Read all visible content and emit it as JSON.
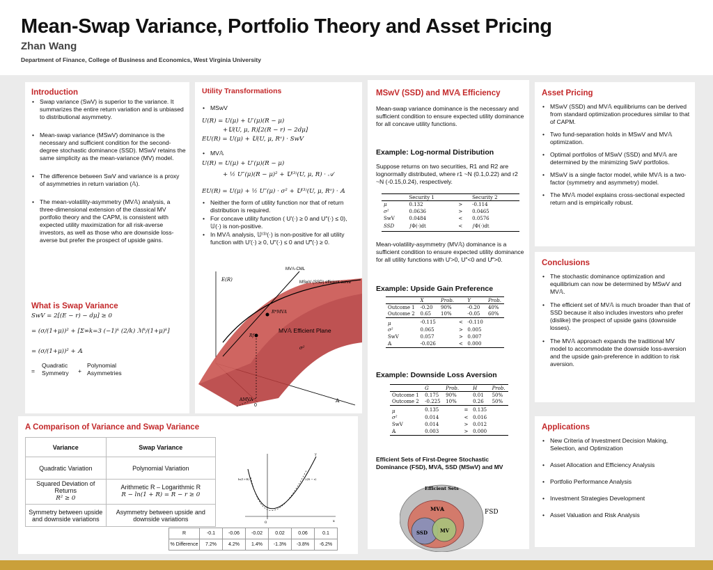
{
  "header": {
    "title": "Mean-Swap Variance, Portfolio Theory and Asset Pricing",
    "author": "Zhan Wang",
    "department": "Department of Finance, College of Business and Economics, West Virginia University"
  },
  "colors": {
    "accent_red": "#c3282a",
    "footer_gold": "#caa03a",
    "surface_red": "#b53a3a"
  },
  "introduction": {
    "title": "Introduction",
    "bullets": [
      "Swap variance (SwV) is superior to the variance.  It summarizes the entire return variation and is unbiased to distributional asymmetry.",
      "Mean-swap variance (MSwV) dominance is the necessary and sufficient condition for the second-degree stochastic dominance (SSD). MSwV retains the same simplicity as the mean-variance (MV) model.",
      "The difference between SwV and variance is a proxy of asymmetries in return variation (𝔸).",
      "The mean-volatility-asymmetry (MV𝔸) analysis, a three-dimensional extension of the classical MV portfolio theory and the CAPM, is consistent with expected utility maximization for all risk-averse investors, as well as those who are downside loss-averse but prefer the prospect of upside gains."
    ]
  },
  "swap_variance": {
    "title": "What is Swap Variance",
    "eq1": "SwV = 2[(E − r) − dμ] ≥ 0",
    "eq2": "= (σ/(1+μ))² + [Σ∞k=3 (−1)ᵏ (2/k) ℳᵏ/(1+μ)ᵏ]",
    "eq3": "= (σ/(1+μ))² +  𝔸",
    "label_quadratic": "Quadratic Symmetry",
    "label_polynomial": "Polynomial Asymmetries"
  },
  "utility": {
    "title": "Utility Transformations",
    "mswv_label": "MSwV",
    "mswv_eq1": "U(R) = U(μ) + U′(μ)(R − μ)",
    "mswv_eq2": "+𝕌(U, μ, R)[2(R − r) − 2dμ]",
    "mswv_eq3": "EU(R) = U(μ) + 𝕌(U, μ, Rᵒ) · SwV",
    "mva_label": "MV𝔸",
    "mva_eq1": "U(R) = U(μ) + U′(μ)(R − μ)",
    "mva_eq2": "+ ½ U″(μ)(R − μ)² + 𝕌⁽³⁾(U, μ, R) · 𝒜",
    "mva_eq3": "EU(R) = U(μ) + ½ U″(μ) · σ² + 𝕌⁽³⁾(U, μ, Rᵒ) · 𝔸",
    "bullets": [
      "Neither the form of utility function nor that of return distribution is required.",
      "For concave utility function ( U′(·) ≥ 0 and U″(·) ≤ 0), 𝕌(·) is non-positive.",
      "In MV𝔸 analysis, 𝕌⁽³⁾(·) is non-positive for all utility function with  U′(·) ≥ 0, U″(·) ≤ 0 and  U‴(·) ≥ 0."
    ]
  },
  "plot3d": {
    "axis_er": "E(R)",
    "label_cml": "MV𝔸-CML",
    "label_frontier": "MSwV (SSD) efficient curve",
    "label_plane": "MV𝔸 Efficient Plane",
    "label_rm": "R*MVA",
    "label_rf": "Rf",
    "label_sigma": "σ²",
    "label_amva": "𝔸MVA",
    "label_zero": "0",
    "label_a": "𝔸"
  },
  "comparison": {
    "title": "A Comparison of Variance and Swap Variance",
    "headers": [
      "Variance",
      "Swap Variance"
    ],
    "rows": [
      [
        "Quadratic Variation",
        "Polynomial Variation"
      ],
      [
        "Squared Deviation of Returns",
        "Arithmetic R – Logarithmic R"
      ],
      [
        "R² ≥ 0",
        "R − ln(1 + R) = R − r ≥ 0"
      ],
      [
        "Symmetry between upside and downside variations",
        "Asymmetry between upside and downside variations"
      ]
    ],
    "small_table": {
      "row1": [
        "R",
        "-0.1",
        "-0.06",
        "-0.02",
        "0.02",
        "0.06",
        "0.1"
      ],
      "row2": [
        "% Difference",
        "7.2%",
        "4.2%",
        "1.4%",
        "-1.3%",
        "-3.8%",
        "-6.2%"
      ]
    },
    "parabola_labels": {
      "y": "y",
      "x": "x",
      "o": "0",
      "l1": "ln(1+R)",
      "l2": "2(R − r)"
    }
  },
  "efficiency": {
    "title": "MSwV (SSD) and MV𝔸 Efficiency",
    "intro": "Mean-swap variance dominance is the necessary and sufficient condition to ensure expected utility dominance for all concave utility functions.",
    "ex1_title": "Example: Log-normal Distribution",
    "ex1_text": "Suppose returns on two securities, R1 and R2 are lognormally distributed, where r1 ~N (0.1,0.22) and r2 ~N (-0.15,0.24), respectively.",
    "ex1_table": {
      "headers": [
        "",
        "Security 1",
        "",
        "Security 2"
      ],
      "rows": [
        [
          "μ",
          "0.132",
          ">",
          "-0.114"
        ],
        [
          "σ²",
          "0.0636",
          ">",
          "0.0465"
        ],
        [
          "SwV",
          "0.0484",
          "<",
          "0.0576"
        ],
        [
          "SSD",
          "∫Φ(·)dt",
          "<",
          "∫Φ(·)dt"
        ]
      ]
    },
    "mid_text": "Mean-volatility-asymmetry (MV𝔸) dominance is a sufficient condition to ensure expected utility dominance for all utility functions with U′>0, U″<0 and U‴>0.",
    "ex2_title": "Example: Upside Gain Preference",
    "ex2_table": {
      "headers": [
        "",
        "X",
        "Prob.",
        "",
        "Y",
        "Prob."
      ],
      "outcomes": [
        [
          "Outcome 1",
          "-0.20",
          "90%",
          "",
          "-0.20",
          "40%"
        ],
        [
          "Outcome 2",
          "0.65",
          "10%",
          "",
          "-0.05",
          "60%"
        ]
      ],
      "stats": [
        [
          "μ",
          "-0.115",
          "",
          "<",
          "-0.110",
          ""
        ],
        [
          "σ²",
          "0.065",
          "",
          ">",
          "0.005",
          ""
        ],
        [
          "SwV",
          "0.057",
          "",
          ">",
          "0.007",
          ""
        ],
        [
          "𝔸",
          "-0.026",
          "",
          "<",
          "0.000",
          ""
        ]
      ]
    },
    "ex3_title": "Example: Downside Loss Aversion",
    "ex3_table": {
      "headers": [
        "",
        "G",
        "Prob.",
        "",
        "H",
        "Prob."
      ],
      "outcomes": [
        [
          "Outcome 1",
          "0.175",
          "90%",
          "",
          "0.01",
          "50%"
        ],
        [
          "Outcome 2",
          "-0.225",
          "10%",
          "",
          "0.26",
          "50%"
        ]
      ],
      "stats": [
        [
          "μ",
          "0.135",
          "",
          "=",
          "0.135",
          ""
        ],
        [
          "σ²",
          "0.014",
          "",
          "<",
          "0.016",
          ""
        ],
        [
          "SwV",
          "0.014",
          "",
          ">",
          "0.012",
          ""
        ],
        [
          "𝔸",
          "0.003",
          "",
          ">",
          "0.000",
          ""
        ]
      ]
    },
    "sets_title": "Efficient Sets of First-Degree Stochastic Dominance (FSD), MV𝔸, SSD (MSwV) and MV",
    "venn": {
      "title": "Efficient Sets",
      "mva": "MV𝔸",
      "ssd": "SSD",
      "mv": "MV",
      "fsd": "FSD"
    }
  },
  "asset_pricing": {
    "title": "Asset Pricing",
    "bullets": [
      "MSwV (SSD) and MV𝔸 equilibriums can be derived from standard optimization procedures similar to that of CAPM.",
      "Two fund-separation holds in MSwV and MV𝔸 optimization.",
      "Optimal portfolios of MSwV (SSD) and MV𝔸 are determined by the minimizing SwV portfolios.",
      "MSwV is a single factor model, while MV𝔸 is a two-factor (symmetry and asymmetry) model.",
      "The MV𝔸 model explains cross-sectional expected return and is empirically robust."
    ]
  },
  "conclusions": {
    "title": "Conclusions",
    "bullets": [
      "The stochastic dominance optimization and equilibrium can now be determined by MSwV and MV𝔸.",
      "The efficient set of MV𝔸 is much broader than that of SSD because it also includes investors who prefer (dislike) the prospect of upside gains (downside losses).",
      "The MV𝔸 approach expands the traditional MV model to accommodate the downside loss-aversion and the upside gain-preference in addition to risk aversion."
    ]
  },
  "applications": {
    "title": "Applications",
    "bullets": [
      "New Criteria of Investment Decision Making, Selection, and Optimization",
      "Asset Allocation and Efficiency Analysis",
      "Portfolio Performance Analysis",
      "Investment Strategies Development",
      "Asset Valuation and Risk Analysis"
    ]
  }
}
